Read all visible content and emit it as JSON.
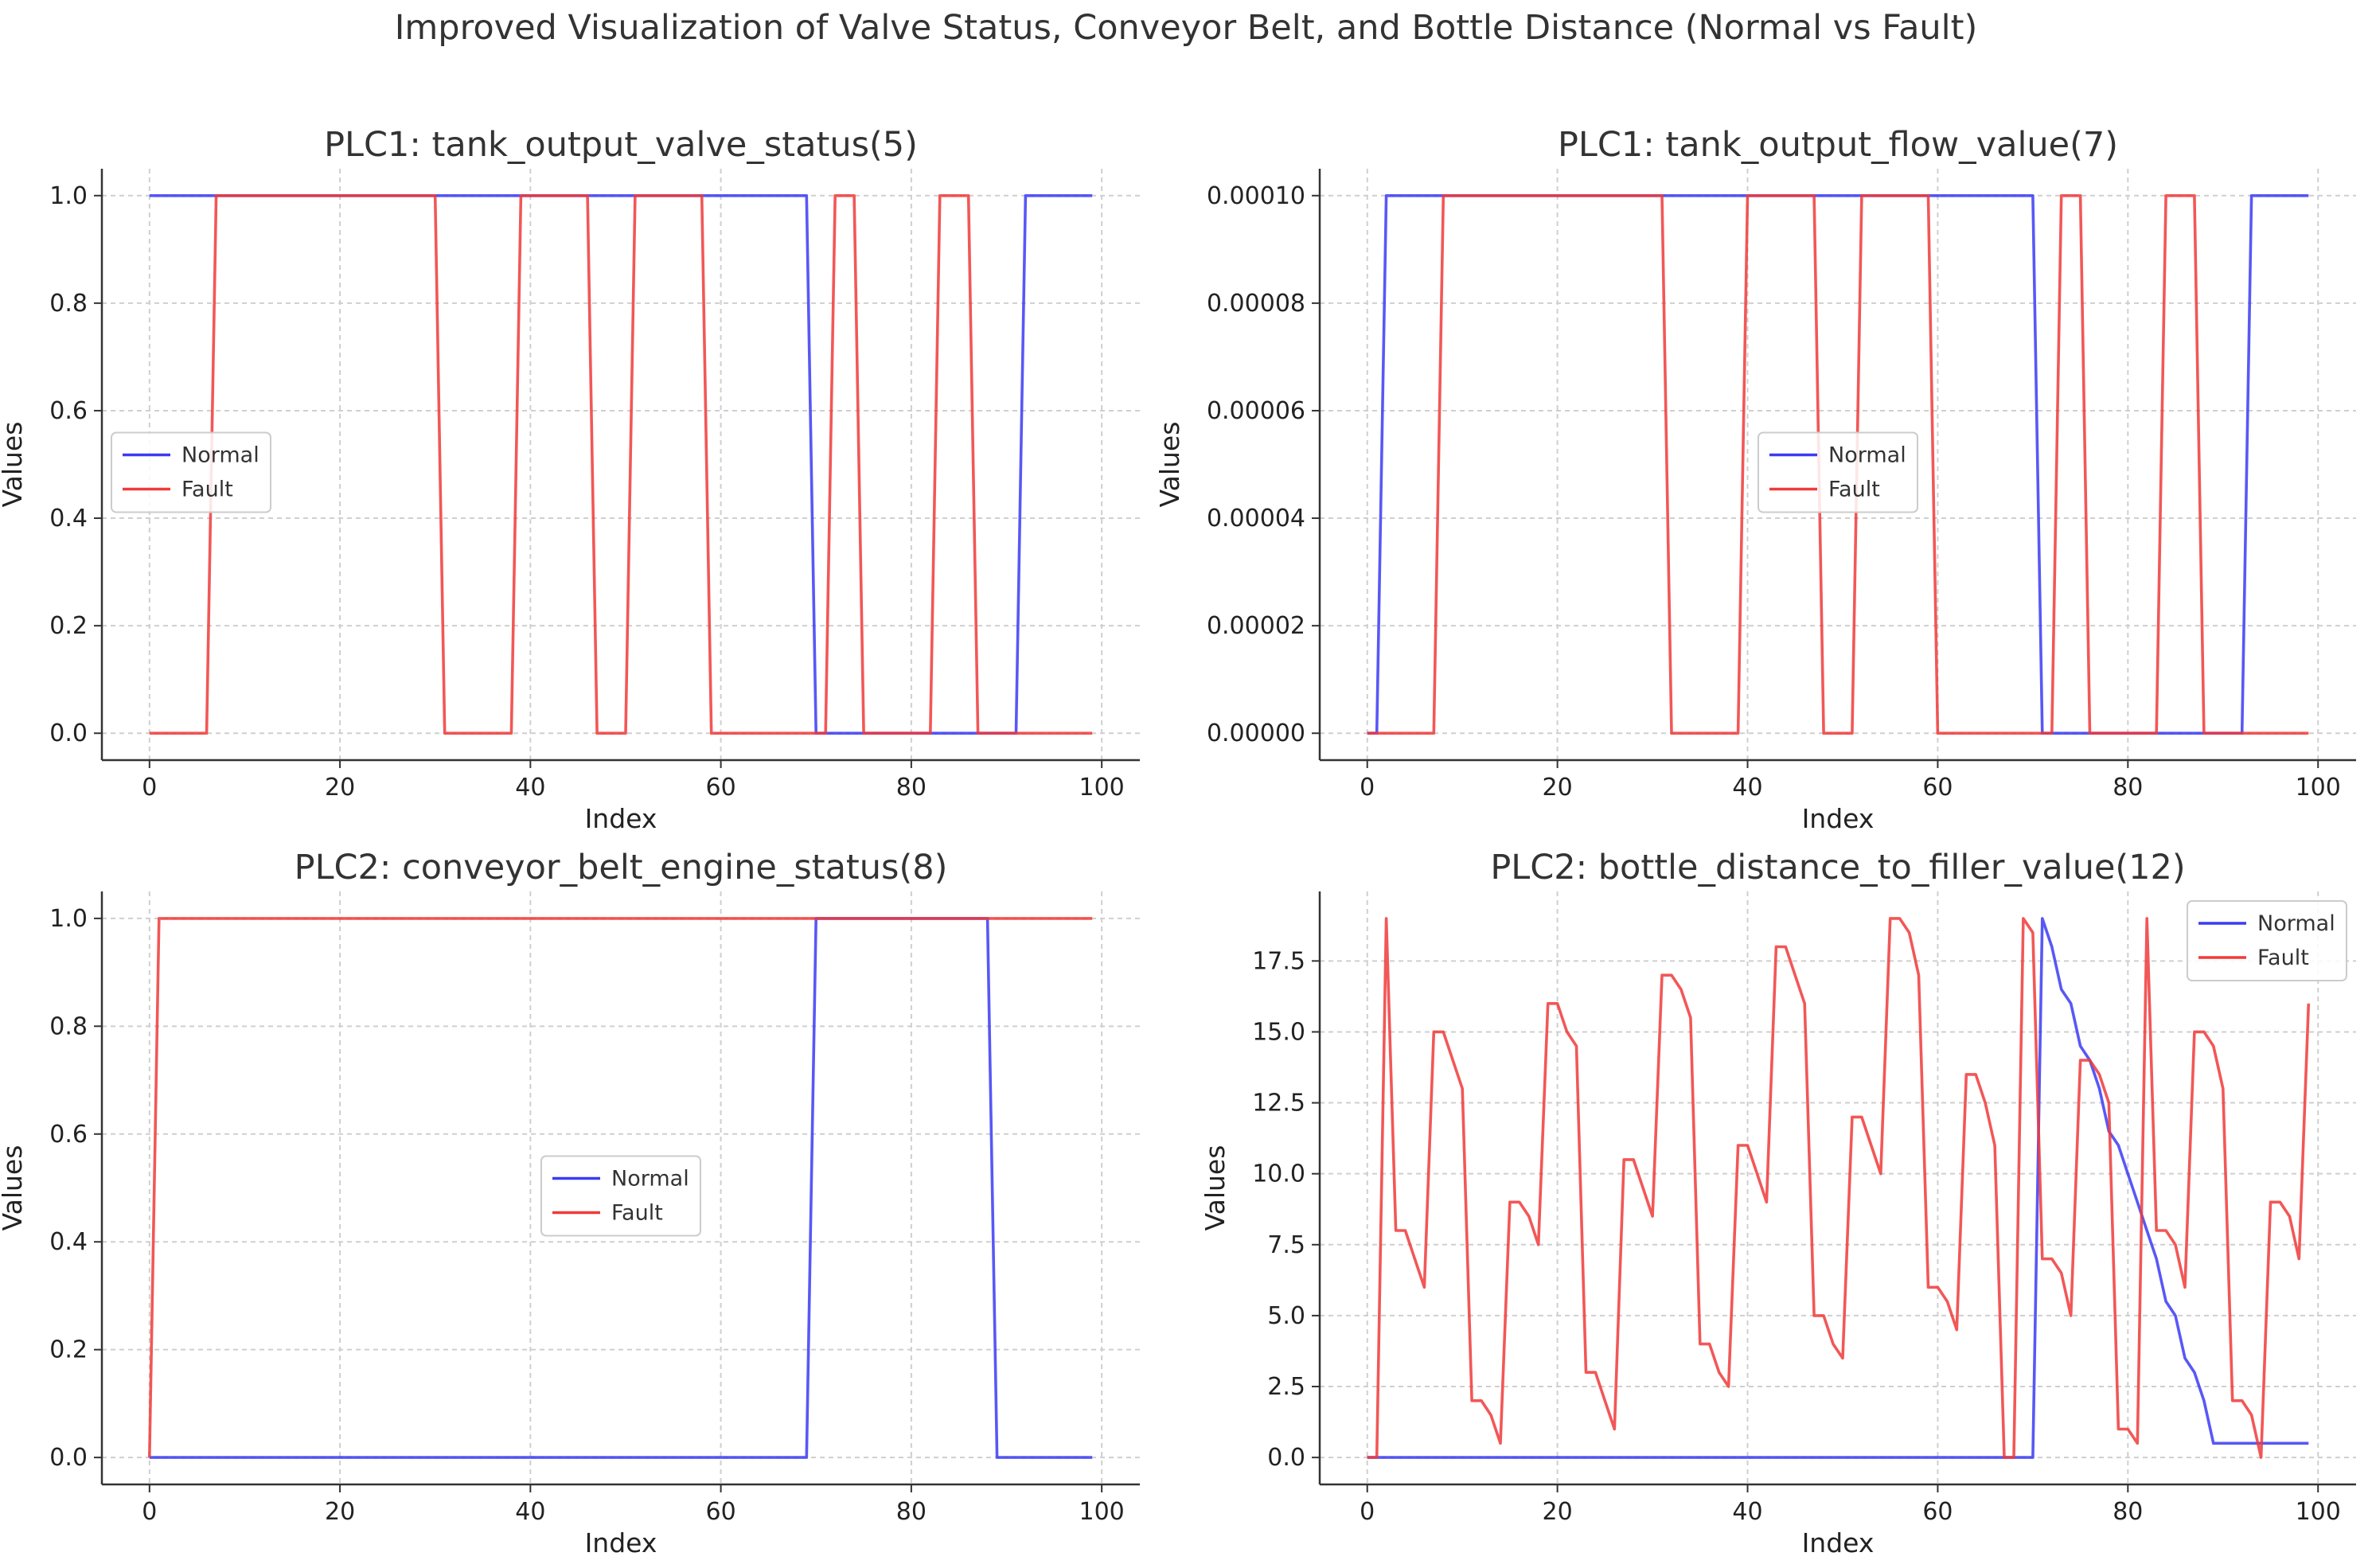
{
  "figure": {
    "title": "Improved Visualization of Valve Status, Conveyor Belt, and Bottle Distance (Normal vs Fault)"
  },
  "colors": {
    "normal": "#3b3bf5",
    "fault": "#f03a3a",
    "axis": "#333333",
    "grid": "#cfcfcf"
  },
  "chart_data": [
    {
      "type": "line",
      "title": "PLC1: tank_output_valve_status(5)",
      "xlabel": "Index",
      "ylabel": "Values",
      "xlim": [
        -5,
        104
      ],
      "ylim": [
        -0.05,
        1.05
      ],
      "xticks": [
        0,
        20,
        40,
        60,
        80,
        100
      ],
      "xtick_labels": [
        "0",
        "20",
        "40",
        "60",
        "80",
        "100"
      ],
      "yticks": [
        0,
        0.2,
        0.4,
        0.6,
        0.8,
        1.0
      ],
      "ytick_labels": [
        "0.0",
        "0.2",
        "0.4",
        "0.6",
        "0.8",
        "1.0"
      ],
      "grid": true,
      "legend_position": "center-left",
      "series": [
        {
          "name": "Normal",
          "color": "#3b3bf5",
          "x": [
            0,
            69,
            70,
            91,
            92,
            99
          ],
          "y": [
            1,
            1,
            0,
            0,
            1,
            1
          ]
        },
        {
          "name": "Fault",
          "color": "#f03a3a",
          "x": [
            0,
            6,
            7,
            30,
            31,
            38,
            39,
            46,
            47,
            50,
            51,
            58,
            59,
            71,
            72,
            74,
            75,
            82,
            83,
            86,
            87,
            99
          ],
          "y": [
            0,
            0,
            1,
            1,
            0,
            0,
            1,
            1,
            0,
            0,
            1,
            1,
            0,
            0,
            1,
            1,
            0,
            0,
            1,
            1,
            0,
            0
          ]
        }
      ]
    },
    {
      "type": "line",
      "title": "PLC1: tank_output_flow_value(7)",
      "xlabel": "Index",
      "ylabel": "Values",
      "xlim": [
        -5,
        104
      ],
      "ylim": [
        -5e-06,
        0.000105
      ],
      "xticks": [
        0,
        20,
        40,
        60,
        80,
        100
      ],
      "xtick_labels": [
        "0",
        "20",
        "40",
        "60",
        "80",
        "100"
      ],
      "yticks": [
        0,
        2e-05,
        4e-05,
        6e-05,
        8e-05,
        0.0001
      ],
      "ytick_labels": [
        "0.00000",
        "0.00002",
        "0.00004",
        "0.00006",
        "0.00008",
        "0.00010"
      ],
      "grid": true,
      "legend_position": "center",
      "series": [
        {
          "name": "Normal",
          "color": "#3b3bf5",
          "x": [
            0,
            1,
            2,
            70,
            71,
            92,
            93,
            99
          ],
          "y": [
            0,
            0,
            0.0001,
            0.0001,
            0,
            0,
            0.0001,
            0.0001
          ]
        },
        {
          "name": "Fault",
          "color": "#f03a3a",
          "x": [
            0,
            7,
            8,
            31,
            32,
            39,
            40,
            47,
            48,
            51,
            52,
            59,
            60,
            72,
            73,
            75,
            76,
            83,
            84,
            87,
            88,
            99
          ],
          "y": [
            0,
            0,
            0.0001,
            0.0001,
            0,
            0,
            0.0001,
            0.0001,
            0,
            0,
            0.0001,
            0.0001,
            0,
            0,
            0.0001,
            0.0001,
            0,
            0,
            0.0001,
            0.0001,
            0,
            0
          ]
        }
      ]
    },
    {
      "type": "line",
      "title": "PLC2: conveyor_belt_engine_status(8)",
      "xlabel": "Index",
      "ylabel": "Values",
      "xlim": [
        -5,
        104
      ],
      "ylim": [
        -0.05,
        1.05
      ],
      "xticks": [
        0,
        20,
        40,
        60,
        80,
        100
      ],
      "xtick_labels": [
        "0",
        "20",
        "40",
        "60",
        "80",
        "100"
      ],
      "yticks": [
        0,
        0.2,
        0.4,
        0.6,
        0.8,
        1.0
      ],
      "ytick_labels": [
        "0.0",
        "0.2",
        "0.4",
        "0.6",
        "0.8",
        "1.0"
      ],
      "grid": true,
      "legend_position": "center",
      "series": [
        {
          "name": "Normal",
          "color": "#3b3bf5",
          "x": [
            0,
            69,
            70,
            88,
            89,
            99
          ],
          "y": [
            0,
            0,
            1,
            1,
            0,
            0
          ]
        },
        {
          "name": "Fault",
          "color": "#f03a3a",
          "x": [
            0,
            1,
            99
          ],
          "y": [
            0,
            1,
            1
          ]
        }
      ]
    },
    {
      "type": "line",
      "title": "PLC2: bottle_distance_to_filler_value(12)",
      "xlabel": "Index",
      "ylabel": "Values",
      "xlim": [
        -5,
        104
      ],
      "ylim": [
        -0.95,
        19.95
      ],
      "xticks": [
        0,
        20,
        40,
        60,
        80,
        100
      ],
      "xtick_labels": [
        "0",
        "20",
        "40",
        "60",
        "80",
        "100"
      ],
      "yticks": [
        0,
        2.5,
        5,
        7.5,
        10,
        12.5,
        15,
        17.5
      ],
      "ytick_labels": [
        "0.0",
        "2.5",
        "5.0",
        "7.5",
        "10.0",
        "12.5",
        "15.0",
        "17.5"
      ],
      "grid": true,
      "legend_position": "top-right",
      "series": [
        {
          "name": "Normal",
          "color": "#3b3bf5",
          "x": [
            0,
            70,
            71,
            72,
            73,
            74,
            75,
            76,
            77,
            78,
            79,
            80,
            81,
            82,
            83,
            84,
            85,
            86,
            87,
            88,
            89,
            90,
            91,
            92,
            93,
            94,
            95,
            96,
            97,
            98,
            99
          ],
          "y": [
            0,
            0,
            19,
            18,
            16.5,
            16,
            14.5,
            14,
            13,
            11.5,
            11,
            10,
            9,
            8,
            7,
            5.5,
            5,
            3.5,
            3,
            2,
            0.5,
            0.5,
            0.5,
            0.5,
            0.5,
            0.5,
            0.5,
            0.5,
            0.5,
            0.5,
            0.5
          ]
        },
        {
          "name": "Fault",
          "color": "#f03a3a",
          "x": [
            0,
            1,
            2,
            3,
            4,
            5,
            6,
            7,
            8,
            9,
            10,
            11,
            12,
            13,
            14,
            15,
            16,
            17,
            18,
            19,
            20,
            21,
            22,
            23,
            24,
            25,
            26,
            27,
            28,
            29,
            30,
            31,
            32,
            33,
            34,
            35,
            36,
            37,
            38,
            39,
            40,
            41,
            42,
            43,
            44,
            45,
            46,
            47,
            48,
            49,
            50,
            51,
            52,
            53,
            54,
            55,
            56,
            57,
            58,
            59,
            60,
            61,
            62,
            63,
            64,
            65,
            66,
            67,
            68,
            69,
            70,
            71,
            72,
            73,
            74,
            75,
            76,
            77,
            78,
            79,
            80,
            81,
            82,
            83,
            84,
            85,
            86,
            87,
            88,
            89,
            90,
            91,
            92,
            93,
            94,
            95,
            96,
            97,
            98,
            99
          ],
          "y": [
            0,
            0,
            19,
            8,
            8,
            7,
            6,
            15,
            15,
            14,
            13,
            2,
            2,
            1.5,
            0.5,
            9,
            9,
            8.5,
            7.5,
            16,
            16,
            15,
            14.5,
            3,
            3,
            2,
            1,
            10.5,
            10.5,
            9.5,
            8.5,
            17,
            17,
            16.5,
            15.5,
            4,
            4,
            3,
            2.5,
            11,
            11,
            10,
            9,
            18,
            18,
            17,
            16,
            5,
            5,
            4,
            3.5,
            12,
            12,
            11,
            10,
            19,
            19,
            18.5,
            17,
            6,
            6,
            5.5,
            4.5,
            13.5,
            13.5,
            12.5,
            11,
            0,
            0,
            19,
            18.5,
            7,
            7,
            6.5,
            5,
            14,
            14,
            13.5,
            12.5,
            1,
            1,
            0.5,
            19,
            8,
            8,
            7.5,
            6,
            15,
            15,
            14.5,
            13,
            2,
            2,
            1.5,
            0,
            9,
            9,
            8.5,
            7,
            16
          ]
        }
      ]
    }
  ]
}
